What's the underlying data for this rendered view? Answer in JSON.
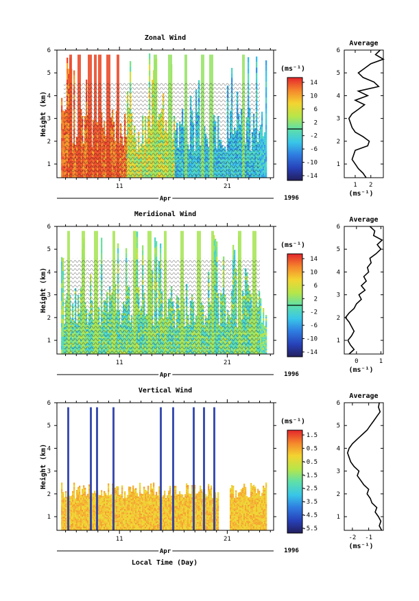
{
  "x_axis": {
    "month": "Apr",
    "year": "1996",
    "tick_labels": [
      "11",
      "21"
    ],
    "label": "Local Time (Day)"
  },
  "colorbar_unit": "(ms⁻¹)",
  "avg_unit": "(ms⁻¹)",
  "y_axis_label": "Height (km)",
  "chart_data": [
    {
      "type": "heatmap",
      "title": "Zonal Wind",
      "ylabel": "Height (km)",
      "xlabel": "Apr",
      "ylim": [
        0.4,
        6
      ],
      "yticks": [
        1,
        2,
        3,
        4,
        5,
        6
      ],
      "xlim_day": [
        5.2,
        25.3
      ],
      "colorbar": {
        "unit": "(ms⁻¹)",
        "tick_labels": [
          "14",
          "10",
          "6",
          "2",
          "-2",
          "-6",
          "-10",
          "-14"
        ],
        "range": [
          -16,
          16
        ]
      },
      "average_profile": {
        "title": "Average",
        "xlabel": "(ms⁻¹)",
        "xlim": [
          0.3,
          2.8
        ],
        "xticks": [
          1,
          2
        ],
        "heights": [
          0.4,
          0.6,
          0.8,
          1.0,
          1.2,
          1.4,
          1.6,
          1.8,
          2.0,
          2.2,
          2.4,
          2.6,
          2.8,
          3.0,
          3.2,
          3.4,
          3.6,
          3.8,
          4.0,
          4.2,
          4.4,
          4.6,
          4.8,
          5.0,
          5.2,
          5.4,
          5.6,
          5.8,
          6.0
        ],
        "values": [
          1.7,
          1.5,
          1.2,
          1.0,
          0.8,
          0.9,
          1.0,
          1.8,
          1.9,
          1.5,
          1.0,
          0.8,
          0.7,
          0.6,
          0.8,
          1.2,
          1.6,
          1.0,
          1.8,
          1.2,
          2.5,
          2.2,
          1.5,
          1.2,
          1.6,
          2.0,
          2.8,
          2.3,
          2.6
        ]
      }
    },
    {
      "type": "heatmap",
      "title": "Meridional Wind",
      "ylabel": "Height (km)",
      "xlabel": "Apr",
      "ylim": [
        0.4,
        6
      ],
      "yticks": [
        1,
        2,
        3,
        4,
        5,
        6
      ],
      "xlim_day": [
        5.2,
        25.3
      ],
      "colorbar": {
        "unit": "(ms⁻¹)",
        "tick_labels": [
          "14",
          "10",
          "6",
          "2",
          "-2",
          "-6",
          "-10",
          "-14"
        ],
        "range": [
          -16,
          16
        ]
      },
      "average_profile": {
        "title": "Average",
        "xlabel": "(ms⁻¹)",
        "xlim": [
          -0.5,
          1.1
        ],
        "xticks": [
          0,
          1
        ],
        "heights": [
          0.4,
          0.6,
          0.8,
          1.0,
          1.2,
          1.4,
          1.6,
          1.8,
          2.0,
          2.2,
          2.4,
          2.6,
          2.8,
          3.0,
          3.2,
          3.4,
          3.6,
          3.8,
          4.0,
          4.2,
          4.4,
          4.6,
          4.8,
          5.0,
          5.2,
          5.4,
          5.6,
          5.8,
          6.0
        ],
        "values": [
          -0.3,
          -0.1,
          -0.25,
          -0.35,
          -0.2,
          -0.1,
          -0.2,
          -0.3,
          -0.45,
          -0.3,
          -0.1,
          0.0,
          0.2,
          0.1,
          0.35,
          0.2,
          0.4,
          0.3,
          0.5,
          0.45,
          0.6,
          0.55,
          0.8,
          1.0,
          0.85,
          1.05,
          0.7,
          0.75,
          0.55
        ]
      }
    },
    {
      "type": "heatmap",
      "title": "Vertical Wind",
      "ylabel": "Height (km)",
      "xlabel": "Local Time (Day)",
      "ylim": [
        0.4,
        6
      ],
      "yticks": [
        1,
        2,
        3,
        4,
        5,
        6
      ],
      "xlim_day": [
        5.2,
        25.3
      ],
      "colorbar": {
        "unit": "(ms⁻¹)",
        "tick_labels": [
          "1.5",
          "0.5",
          "-0.5",
          "-1.5",
          "-2.5",
          "-3.5",
          "-4.5",
          "-5.5"
        ],
        "range": [
          -6,
          2
        ]
      },
      "average_profile": {
        "title": "Average",
        "xlabel": "(ms⁻¹)",
        "xlim": [
          -2.5,
          -0.1
        ],
        "xticks": [
          -2,
          -1
        ],
        "heights": [
          0.4,
          0.6,
          0.8,
          1.0,
          1.2,
          1.4,
          1.6,
          1.8,
          2.0,
          2.2,
          2.4,
          2.6,
          2.8,
          3.0,
          3.2,
          3.4,
          3.6,
          3.8,
          4.0,
          4.2,
          4.4,
          4.6,
          4.8,
          5.0,
          5.2,
          5.4,
          5.6,
          5.8,
          6.0
        ],
        "values": [
          -0.2,
          -0.35,
          -0.25,
          -0.4,
          -0.6,
          -0.5,
          -0.8,
          -0.9,
          -1.1,
          -1.0,
          -1.3,
          -1.5,
          -1.7,
          -1.6,
          -1.9,
          -2.1,
          -2.2,
          -2.3,
          -2.2,
          -2.0,
          -1.7,
          -1.4,
          -1.1,
          -0.9,
          -0.7,
          -0.5,
          -0.3,
          -0.4,
          -0.35
        ]
      }
    }
  ]
}
